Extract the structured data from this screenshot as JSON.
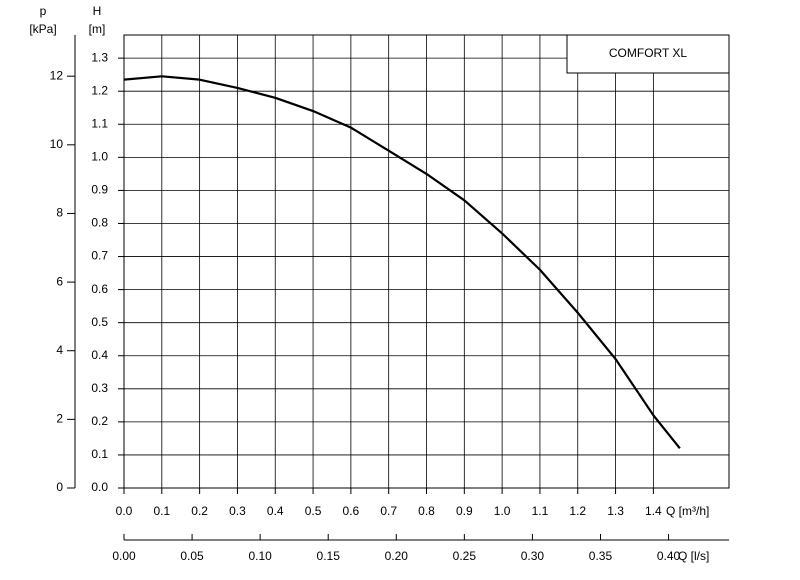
{
  "chart_data": {
    "type": "line",
    "annotation": "COMFORT XL",
    "x": [
      0.0,
      0.1,
      0.2,
      0.3,
      0.4,
      0.5,
      0.6,
      0.7,
      0.8,
      0.9,
      1.0,
      1.1,
      1.2,
      1.3,
      1.4,
      1.47
    ],
    "series": [
      {
        "color": "#000000",
        "values": [
          1.235,
          1.245,
          1.235,
          1.21,
          1.18,
          1.14,
          1.09,
          1.02,
          0.95,
          0.87,
          0.77,
          0.66,
          0.53,
          0.39,
          0.22,
          0.12
        ]
      }
    ],
    "xlabel": "Q [m³/h]",
    "xlim": [
      0,
      1.6
    ],
    "xticks": [
      {
        "value": 0,
        "label": "0.0"
      },
      0.1,
      0.2,
      0.3,
      0.4,
      0.5,
      0.6,
      0.7,
      0.8,
      0.9,
      {
        "value": 1,
        "label": "1.0"
      },
      1.1,
      1.2,
      1.3,
      1.4
    ],
    "x2label": "Q [l/s]",
    "x2lim": [
      0,
      0.4444
    ],
    "x2ticks": [
      {
        "value": 0,
        "label": "0.00"
      },
      0.05,
      {
        "value": 0.1,
        "label": "0.10"
      },
      0.15,
      {
        "value": 0.2,
        "label": "0.20"
      },
      0.25,
      {
        "value": 0.3,
        "label": "0.30"
      },
      0.35,
      {
        "value": 0.4,
        "label": "0.40"
      }
    ],
    "ylabel": "H",
    "yunit": "[m]",
    "ylim": [
      0,
      1.37
    ],
    "yticks": [
      {
        "value": 0,
        "label": "0.0"
      },
      0.1,
      0.2,
      0.3,
      0.4,
      0.5,
      0.6,
      0.7,
      0.8,
      0.9,
      {
        "value": 1,
        "label": "1.0"
      },
      1.1,
      1.2,
      1.3
    ],
    "y2label": "p",
    "y2unit": "[kPa]",
    "y2lim": [
      0,
      13.2
    ],
    "y2ticks": [
      0,
      2,
      4,
      6,
      8,
      10,
      12
    ],
    "grid": true
  }
}
